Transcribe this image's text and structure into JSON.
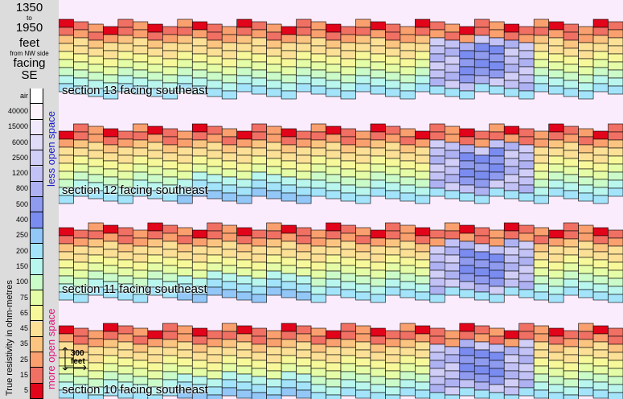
{
  "header": {
    "range_start": "1350",
    "range_to": "to",
    "range_end": "1950",
    "unit": "feet",
    "from_text": "from NW side",
    "facing_label": "facing",
    "facing_dir": "SE"
  },
  "legend": {
    "title": "True resistivity in ohm-metres",
    "top_annotation": "less open space",
    "bottom_annotation": "more open space",
    "top_color": "#1a1ac8",
    "bottom_color": "#e0107a",
    "labels": [
      "air",
      "40000",
      "15000",
      "6000",
      "2500",
      "1200",
      "800",
      "500",
      "400",
      "250",
      "200",
      "150",
      "100",
      "75",
      "65",
      "45",
      "35",
      "25",
      "15",
      "5"
    ],
    "colors": [
      "#ffffff",
      "#fdf3fb",
      "#f0e8fb",
      "#e0dcf8",
      "#d1cef7",
      "#c2c2f6",
      "#aeb2f2",
      "#8f9bef",
      "#7a8cf0",
      "#92c7f7",
      "#a3e4fb",
      "#b8f6ee",
      "#cafbc8",
      "#e5fda6",
      "#f7f89a",
      "#fbe096",
      "#fbc581",
      "#f9a06e",
      "#f07063",
      "#e1041a"
    ]
  },
  "sections": [
    {
      "label": "section 13  facing southeast"
    },
    {
      "label": "section 12  facing southeast"
    },
    {
      "label": "section 11  facing southeast"
    },
    {
      "label": "section 10  facing southeast"
    }
  ],
  "scale": {
    "value": "300",
    "unit": "feet"
  }
}
